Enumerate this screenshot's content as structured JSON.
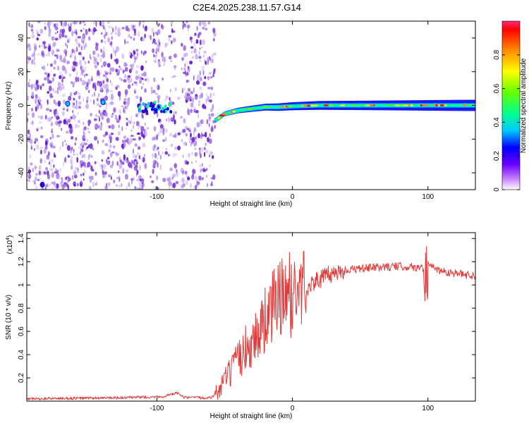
{
  "title": "C2E4.2025.238.11.57.G14",
  "colors": {
    "snr_line": "#e33a3a",
    "frame": "#000000",
    "scatter_purple": "#7a3ad6",
    "scatter_light": "#d7c6f7"
  },
  "chart_data": [
    {
      "type": "heatmap",
      "name": "spectrogram",
      "xlabel": "Height of straight line (km)",
      "ylabel": "Frequency (Hz)",
      "xlim": [
        -196,
        135
      ],
      "ylim": [
        -50,
        50
      ],
      "xticks": [
        -100,
        0,
        100
      ],
      "yticks": [
        -40,
        -20,
        0,
        20,
        40
      ],
      "colorbar": {
        "label": "Normalized spectral amplitude",
        "range": [
          0.0,
          1.0
        ],
        "ticks": [
          0.0,
          0.2,
          0.4,
          0.6,
          0.8
        ]
      },
      "ridge": [
        {
          "x": -57,
          "freq": -9
        },
        {
          "x": -50,
          "freq": -5
        },
        {
          "x": -40,
          "freq": -3
        },
        {
          "x": -30,
          "freq": -2
        },
        {
          "x": -20,
          "freq": -1
        },
        {
          "x": -10,
          "freq": -1
        },
        {
          "x": 0,
          "freq": -0.5
        },
        {
          "x": 20,
          "freq": 0
        },
        {
          "x": 50,
          "freq": 0
        },
        {
          "x": 80,
          "freq": 0
        },
        {
          "x": 100,
          "freq": 0
        },
        {
          "x": 135,
          "freq": 0
        }
      ],
      "noise_region": [
        -196,
        -57
      ]
    },
    {
      "type": "line",
      "name": "snr",
      "xlabel": "Height of straight line (km)",
      "ylabel": "SNR (10 * v/v)",
      "yscale_label": "(x10",
      "yscale_exponent": "4",
      "xlim": [
        -196,
        135
      ],
      "ylim": [
        0,
        1.45
      ],
      "xticks": [
        -100,
        0,
        100
      ],
      "yticks": [
        0.2,
        0.4,
        0.6,
        0.8,
        1.0,
        1.2,
        1.4
      ],
      "series": [
        {
          "name": "SNR",
          "points": [
            [
              -196,
              0.02
            ],
            [
              -120,
              0.03
            ],
            [
              -95,
              0.04
            ],
            [
              -85,
              0.07
            ],
            [
              -80,
              0.03
            ],
            [
              -60,
              0.03
            ],
            [
              -55,
              0.08
            ],
            [
              -50,
              0.18
            ],
            [
              -45,
              0.25
            ],
            [
              -40,
              0.35
            ],
            [
              -35,
              0.45
            ],
            [
              -30,
              0.5
            ],
            [
              -25,
              0.6
            ],
            [
              -20,
              0.7
            ],
            [
              -15,
              0.8
            ],
            [
              -10,
              0.88
            ],
            [
              -5,
              0.9
            ],
            [
              0,
              0.92
            ],
            [
              10,
              0.98
            ],
            [
              20,
              1.05
            ],
            [
              30,
              1.1
            ],
            [
              40,
              1.13
            ],
            [
              60,
              1.15
            ],
            [
              80,
              1.16
            ],
            [
              95,
              1.15
            ],
            [
              100,
              1.17
            ],
            [
              110,
              1.12
            ],
            [
              120,
              1.1
            ],
            [
              135,
              1.08
            ]
          ]
        }
      ]
    }
  ]
}
